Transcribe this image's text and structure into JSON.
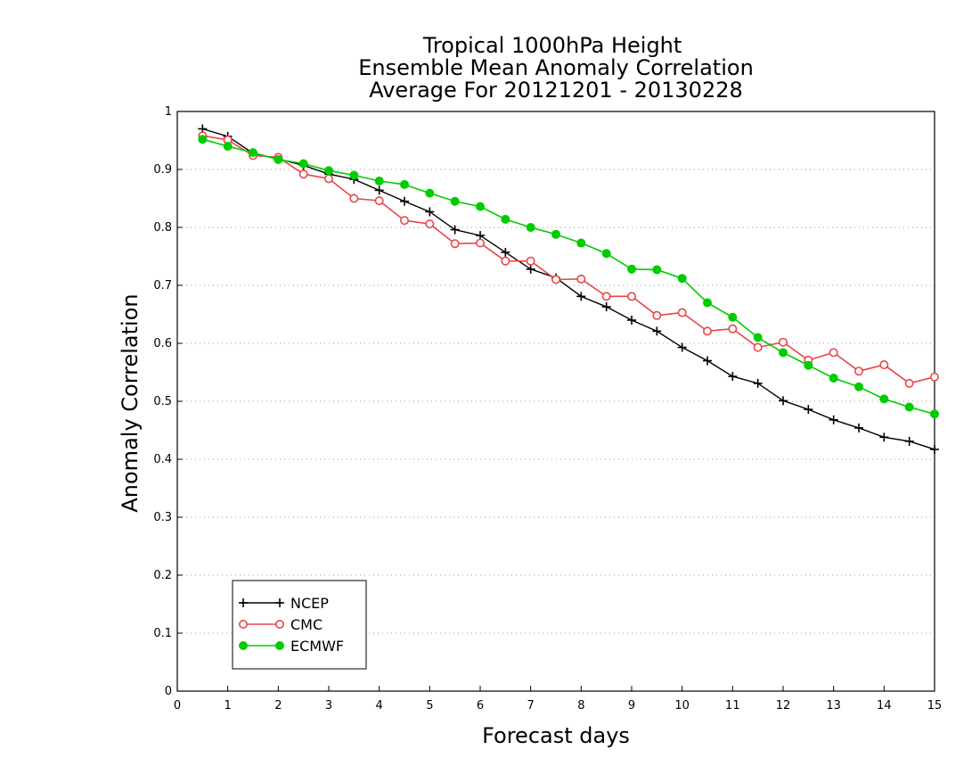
{
  "chart_data": {
    "type": "line",
    "title": [
      "Tropical 1000hPa Height",
      "Ensemble Mean Anomaly Correlation",
      "Average For 20121201 - 20130228"
    ],
    "xlabel": "Forecast days",
    "ylabel": "Anomaly Correlation",
    "xlim": [
      0,
      15
    ],
    "ylim": [
      0,
      1
    ],
    "xticks": [
      "0",
      "1",
      "2",
      "3",
      "4",
      "5",
      "6",
      "7",
      "8",
      "9",
      "10",
      "11",
      "12",
      "13",
      "14",
      "15"
    ],
    "yticks": [
      "0",
      "0.1",
      "0.2",
      "0.3",
      "0.4",
      "0.5",
      "0.6",
      "0.7",
      "0.8",
      "0.9",
      "1"
    ],
    "grid": "horizontal dotted",
    "legend_position": "bottom-left",
    "x": [
      0.5,
      1,
      1.5,
      2,
      2.5,
      3,
      3.5,
      4,
      4.5,
      5,
      5.5,
      6,
      6.5,
      7,
      7.5,
      8,
      8.5,
      9,
      9.5,
      10,
      10.5,
      11,
      11.5,
      12,
      12.5,
      13,
      13.5,
      14,
      14.5,
      15
    ],
    "series": [
      {
        "name": "NCEP",
        "color": "#000000",
        "marker": "plus",
        "values": [
          0.97,
          0.957,
          0.928,
          0.918,
          0.907,
          0.892,
          0.883,
          0.864,
          0.845,
          0.827,
          0.796,
          0.786,
          0.757,
          0.728,
          0.713,
          0.681,
          0.663,
          0.64,
          0.621,
          0.593,
          0.57,
          0.543,
          0.531,
          0.501,
          0.486,
          0.468,
          0.454,
          0.438,
          0.431,
          0.417
        ]
      },
      {
        "name": "CMC",
        "color": "#e8464a",
        "marker": "open-circle",
        "values": [
          0.958,
          0.951,
          0.924,
          0.921,
          0.892,
          0.884,
          0.85,
          0.846,
          0.812,
          0.806,
          0.772,
          0.773,
          0.742,
          0.742,
          0.71,
          0.711,
          0.681,
          0.681,
          0.648,
          0.653,
          0.621,
          0.625,
          0.593,
          0.602,
          0.571,
          0.584,
          0.552,
          0.563,
          0.531,
          0.542
        ]
      },
      {
        "name": "ECMWF",
        "color": "#00cc00",
        "marker": "filled-circle",
        "values": [
          0.952,
          0.94,
          0.929,
          0.917,
          0.91,
          0.898,
          0.89,
          0.88,
          0.874,
          0.859,
          0.845,
          0.836,
          0.814,
          0.8,
          0.788,
          0.773,
          0.755,
          0.728,
          0.727,
          0.712,
          0.67,
          0.645,
          0.61,
          0.584,
          0.562,
          0.54,
          0.525,
          0.504,
          0.49,
          0.478
        ]
      }
    ]
  }
}
